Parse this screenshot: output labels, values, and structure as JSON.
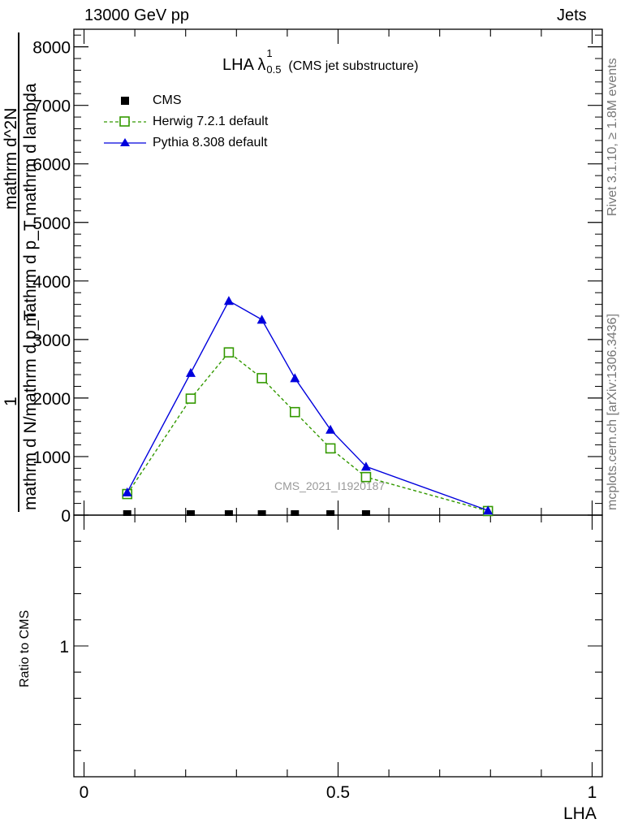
{
  "header": {
    "left": "13000 GeV pp",
    "right": "Jets"
  },
  "side_labels": {
    "top": "Rivet 3.1.10, ≥ 1.8M events",
    "bottom": "mcplots.cern.ch [arXiv:1306.3436]"
  },
  "ylabel_frac": {
    "numerator": "1",
    "denominator": "mathrm d N/mathrm d p_T",
    "numerator_right": "mathrm d^2N",
    "denominator_right": "mathrm d p_T mathrm d lambda"
  },
  "watermark": "CMS_2021_I1920187",
  "plot_title": {
    "main": "LHA λ",
    "sup": "1",
    "sub": "0.5",
    "suffix": "(CMS jet substructure)"
  },
  "ratio_ylabel": "Ratio to CMS",
  "xlabel": "LHA",
  "chart_data": {
    "type": "line",
    "xlim": [
      -0.02,
      1.02
    ],
    "ylim": [
      0,
      8300
    ],
    "xticks": [
      0,
      0.5,
      1
    ],
    "xtick_labels": [
      "0",
      "0.5",
      "1"
    ],
    "yticks": [
      0,
      1000,
      2000,
      3000,
      4000,
      5000,
      6000,
      7000,
      8000
    ],
    "ytick_labels": [
      "0",
      "1000",
      "2000",
      "3000",
      "4000",
      "5000",
      "6000",
      "7000",
      "8000"
    ],
    "ratio_ylim": [
      0.5,
      1.5
    ],
    "ratio_yticks": [
      1
    ],
    "ratio_ytick_labels": [
      "1"
    ],
    "legend_position": "top-left",
    "series": [
      {
        "name": "CMS",
        "style": "square-filled",
        "color": "#000000",
        "x": [
          0.085,
          0.21,
          0.285,
          0.35,
          0.415,
          0.485,
          0.555
        ],
        "y": [
          0,
          0,
          0,
          0,
          0,
          0,
          0
        ]
      },
      {
        "name": "Herwig 7.2.1 default",
        "style": "dashed-open-square",
        "color": "#339900",
        "x": [
          0.085,
          0.21,
          0.285,
          0.35,
          0.415,
          0.485,
          0.555,
          0.795
        ],
        "y": [
          360,
          1990,
          2780,
          2340,
          1760,
          1140,
          650,
          70
        ]
      },
      {
        "name": "Pythia 8.308 default",
        "style": "solid-triangle",
        "color": "#0000dd",
        "x": [
          0.085,
          0.21,
          0.285,
          0.35,
          0.415,
          0.485,
          0.555,
          0.795
        ],
        "y": [
          390,
          2430,
          3660,
          3340,
          2340,
          1460,
          830,
          80
        ]
      }
    ]
  }
}
